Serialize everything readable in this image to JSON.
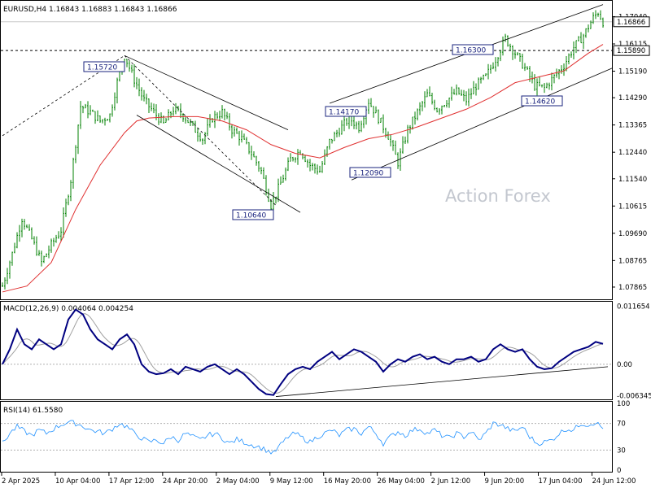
{
  "header": {
    "symbol_tf": "EURUSD,H4",
    "ohlc": "1.16843 1.16883 1.16843 1.16866"
  },
  "watermark": "Action Forex",
  "colors": {
    "price_bars": "#008000",
    "ma_line": "#e03030",
    "macd_line": "#000080",
    "signal_line": "#a0a0a0",
    "rsi_line": "#1e90ff",
    "trendline": "#000000",
    "tag_border": "#1a237e"
  },
  "chart_data": [
    {
      "type": "candlestick",
      "title": "EURUSD,H4",
      "ylim": [
        1.0745,
        1.1755
      ],
      "price_ticks": [
        "1.17040",
        "1.16115",
        "1.15190",
        "1.14290",
        "1.13365",
        "1.12440",
        "1.11540",
        "1.10615",
        "1.09690",
        "1.08765",
        "1.07865"
      ],
      "x_labels": [
        "2 Apr 2025",
        "10 Apr 04:00",
        "17 Apr 12:00",
        "24 Apr 20:00",
        "2 May 04:00",
        "9 May 12:00",
        "16 May 20:00",
        "26 May 04:00",
        "2 Jun 12:00",
        "9 Jun 20:00",
        "17 Jun 04:00",
        "24 Jun 12:00"
      ],
      "current_price": "1.16866",
      "horizontal_level": "1.15890",
      "annotations": [
        "1.15720",
        "1.10640",
        "1.14170",
        "1.12090",
        "1.16300",
        "1.14620"
      ],
      "close_path": [
        [
          0,
          1.079
        ],
        [
          4,
          1.09
        ],
        [
          8,
          1.102
        ],
        [
          12,
          1.095
        ],
        [
          16,
          1.087
        ],
        [
          20,
          1.093
        ],
        [
          24,
          1.098
        ],
        [
          28,
          1.115
        ],
        [
          32,
          1.14
        ],
        [
          36,
          1.138
        ],
        [
          40,
          1.135
        ],
        [
          44,
          1.137
        ],
        [
          48,
          1.152
        ],
        [
          50,
          1.1572
        ],
        [
          54,
          1.149
        ],
        [
          58,
          1.142
        ],
        [
          62,
          1.138
        ],
        [
          66,
          1.134
        ],
        [
          70,
          1.139
        ],
        [
          74,
          1.137
        ],
        [
          78,
          1.133
        ],
        [
          82,
          1.129
        ],
        [
          86,
          1.136
        ],
        [
          90,
          1.138
        ],
        [
          94,
          1.132
        ],
        [
          98,
          1.129
        ],
        [
          102,
          1.124
        ],
        [
          106,
          1.118
        ],
        [
          110,
          1.1064
        ],
        [
          114,
          1.114
        ],
        [
          118,
          1.122
        ],
        [
          122,
          1.125
        ],
        [
          126,
          1.12
        ],
        [
          130,
          1.118
        ],
        [
          134,
          1.128
        ],
        [
          138,
          1.132
        ],
        [
          142,
          1.136
        ],
        [
          146,
          1.133
        ],
        [
          150,
          1.1417
        ],
        [
          154,
          1.136
        ],
        [
          158,
          1.13
        ],
        [
          162,
          1.1209
        ],
        [
          166,
          1.132
        ],
        [
          170,
          1.138
        ],
        [
          174,
          1.144
        ],
        [
          178,
          1.139
        ],
        [
          182,
          1.142
        ],
        [
          186,
          1.145
        ],
        [
          190,
          1.142
        ],
        [
          194,
          1.147
        ],
        [
          198,
          1.15
        ],
        [
          202,
          1.156
        ],
        [
          206,
          1.163
        ],
        [
          210,
          1.158
        ],
        [
          214,
          1.153
        ],
        [
          218,
          1.147
        ],
        [
          222,
          1.1462
        ],
        [
          226,
          1.15
        ],
        [
          230,
          1.154
        ],
        [
          234,
          1.16
        ],
        [
          238,
          1.164
        ],
        [
          242,
          1.17
        ],
        [
          244,
          1.172
        ],
        [
          246,
          1.1687
        ]
      ],
      "ma_path": [
        [
          0,
          1.077
        ],
        [
          10,
          1.079
        ],
        [
          20,
          1.087
        ],
        [
          30,
          1.105
        ],
        [
          40,
          1.12
        ],
        [
          50,
          1.131
        ],
        [
          55,
          1.135
        ],
        [
          60,
          1.136
        ],
        [
          70,
          1.1365
        ],
        [
          80,
          1.1365
        ],
        [
          90,
          1.135
        ],
        [
          100,
          1.132
        ],
        [
          110,
          1.127
        ],
        [
          120,
          1.124
        ],
        [
          130,
          1.1225
        ],
        [
          140,
          1.126
        ],
        [
          150,
          1.129
        ],
        [
          160,
          1.1305
        ],
        [
          170,
          1.133
        ],
        [
          180,
          1.136
        ],
        [
          190,
          1.139
        ],
        [
          200,
          1.143
        ],
        [
          210,
          1.148
        ],
        [
          220,
          1.15
        ],
        [
          230,
          1.152
        ],
        [
          240,
          1.158
        ],
        [
          246,
          1.161
        ]
      ],
      "trendlines": [
        {
          "from": [
            0,
            1.13
          ],
          "to": [
            50,
            1.1572
          ]
        },
        {
          "from": [
            50,
            1.1572
          ],
          "to": [
            117,
            1.132
          ]
        },
        {
          "from": [
            55,
            1.137
          ],
          "to": [
            122,
            1.104
          ]
        },
        {
          "from": [
            50,
            1.1572
          ],
          "to": [
            112,
            1.1064
          ]
        },
        {
          "from": [
            134,
            1.141
          ],
          "to": [
            246,
            1.1745
          ]
        },
        {
          "from": [
            143,
            1.115
          ],
          "to": [
            250,
            1.153
          ]
        }
      ]
    },
    {
      "type": "line",
      "title": "MACD(12,26,9) 0.004064 0.004254",
      "ylim": [
        -0.0069,
        0.0124
      ],
      "y_ticks": [
        "0.011654",
        "0.00",
        "-0.006345"
      ],
      "macd": [
        [
          0,
          0.0
        ],
        [
          3,
          0.003
        ],
        [
          6,
          0.007
        ],
        [
          9,
          0.004
        ],
        [
          12,
          0.003
        ],
        [
          15,
          0.005
        ],
        [
          18,
          0.004
        ],
        [
          21,
          0.003
        ],
        [
          24,
          0.004
        ],
        [
          27,
          0.009
        ],
        [
          30,
          0.011
        ],
        [
          33,
          0.01
        ],
        [
          36,
          0.007
        ],
        [
          39,
          0.005
        ],
        [
          42,
          0.004
        ],
        [
          45,
          0.003
        ],
        [
          48,
          0.005
        ],
        [
          51,
          0.006
        ],
        [
          54,
          0.004
        ],
        [
          57,
          0.0
        ],
        [
          60,
          -0.0015
        ],
        [
          63,
          -0.002
        ],
        [
          66,
          -0.0018
        ],
        [
          69,
          -0.001
        ],
        [
          72,
          -0.002
        ],
        [
          75,
          -0.0005
        ],
        [
          78,
          -0.001
        ],
        [
          81,
          -0.0015
        ],
        [
          84,
          -0.0005
        ],
        [
          87,
          0.0
        ],
        [
          90,
          -0.001
        ],
        [
          93,
          -0.002
        ],
        [
          96,
          -0.001
        ],
        [
          99,
          -0.002
        ],
        [
          102,
          -0.0035
        ],
        [
          105,
          -0.005
        ],
        [
          108,
          -0.006
        ],
        [
          111,
          -0.0062
        ],
        [
          114,
          -0.004
        ],
        [
          117,
          -0.002
        ],
        [
          120,
          -0.001
        ],
        [
          123,
          -0.0005
        ],
        [
          126,
          -0.001
        ],
        [
          129,
          0.0005
        ],
        [
          132,
          0.0015
        ],
        [
          135,
          0.0025
        ],
        [
          138,
          0.001
        ],
        [
          141,
          0.002
        ],
        [
          144,
          0.003
        ],
        [
          147,
          0.0025
        ],
        [
          150,
          0.0015
        ],
        [
          153,
          0.0005
        ],
        [
          156,
          -0.0015
        ],
        [
          159,
          0.0
        ],
        [
          162,
          0.001
        ],
        [
          165,
          0.0005
        ],
        [
          168,
          0.0015
        ],
        [
          171,
          0.002
        ],
        [
          174,
          0.001
        ],
        [
          177,
          0.0015
        ],
        [
          180,
          0.0005
        ],
        [
          183,
          0.0
        ],
        [
          186,
          0.001
        ],
        [
          189,
          0.001
        ],
        [
          192,
          0.0015
        ],
        [
          195,
          0.0005
        ],
        [
          198,
          0.001
        ],
        [
          201,
          0.003
        ],
        [
          204,
          0.004
        ],
        [
          207,
          0.003
        ],
        [
          210,
          0.0025
        ],
        [
          213,
          0.003
        ],
        [
          216,
          0.001
        ],
        [
          219,
          -0.0005
        ],
        [
          222,
          -0.001
        ],
        [
          225,
          -0.0008
        ],
        [
          228,
          0.0005
        ],
        [
          231,
          0.0015
        ],
        [
          234,
          0.0025
        ],
        [
          237,
          0.003
        ],
        [
          240,
          0.0035
        ],
        [
          243,
          0.0045
        ],
        [
          246,
          0.0041
        ]
      ],
      "trendline": {
        "from": [
          112,
          -0.0065
        ],
        "to": [
          248,
          -0.0005
        ]
      }
    },
    {
      "type": "line",
      "title": "RSI(14) 61.5580",
      "ylim": [
        0,
        100
      ],
      "y_ticks": [
        "100",
        "70",
        "30",
        "0"
      ],
      "levels": [
        70,
        30
      ],
      "rsi": [
        [
          0,
          40
        ],
        [
          3,
          55
        ],
        [
          6,
          65
        ],
        [
          9,
          58
        ],
        [
          12,
          52
        ],
        [
          15,
          60
        ],
        [
          18,
          55
        ],
        [
          21,
          62
        ],
        [
          24,
          68
        ],
        [
          27,
          72
        ],
        [
          30,
          70
        ],
        [
          33,
          66
        ],
        [
          36,
          60
        ],
        [
          39,
          58
        ],
        [
          42,
          55
        ],
        [
          45,
          62
        ],
        [
          48,
          70
        ],
        [
          51,
          65
        ],
        [
          54,
          55
        ],
        [
          57,
          48
        ],
        [
          60,
          42
        ],
        [
          63,
          45
        ],
        [
          66,
          40
        ],
        [
          69,
          50
        ],
        [
          72,
          45
        ],
        [
          75,
          55
        ],
        [
          78,
          50
        ],
        [
          81,
          45
        ],
        [
          84,
          52
        ],
        [
          87,
          55
        ],
        [
          90,
          48
        ],
        [
          93,
          40
        ],
        [
          96,
          46
        ],
        [
          99,
          42
        ],
        [
          102,
          38
        ],
        [
          105,
          35
        ],
        [
          108,
          30
        ],
        [
          111,
          25
        ],
        [
          114,
          38
        ],
        [
          117,
          50
        ],
        [
          120,
          55
        ],
        [
          123,
          48
        ],
        [
          126,
          42
        ],
        [
          129,
          50
        ],
        [
          132,
          55
        ],
        [
          135,
          60
        ],
        [
          138,
          52
        ],
        [
          141,
          60
        ],
        [
          144,
          62
        ],
        [
          147,
          55
        ],
        [
          150,
          65
        ],
        [
          153,
          55
        ],
        [
          156,
          40
        ],
        [
          159,
          50
        ],
        [
          162,
          58
        ],
        [
          165,
          52
        ],
        [
          168,
          60
        ],
        [
          171,
          62
        ],
        [
          174,
          55
        ],
        [
          177,
          60
        ],
        [
          180,
          52
        ],
        [
          183,
          48
        ],
        [
          186,
          55
        ],
        [
          189,
          50
        ],
        [
          192,
          58
        ],
        [
          195,
          45
        ],
        [
          198,
          55
        ],
        [
          201,
          70
        ],
        [
          204,
          68
        ],
        [
          207,
          62
        ],
        [
          210,
          58
        ],
        [
          213,
          65
        ],
        [
          216,
          50
        ],
        [
          219,
          40
        ],
        [
          222,
          42
        ],
        [
          225,
          45
        ],
        [
          228,
          55
        ],
        [
          231,
          62
        ],
        [
          234,
          60
        ],
        [
          237,
          70
        ],
        [
          240,
          68
        ],
        [
          243,
          72
        ],
        [
          246,
          62
        ]
      ]
    }
  ]
}
